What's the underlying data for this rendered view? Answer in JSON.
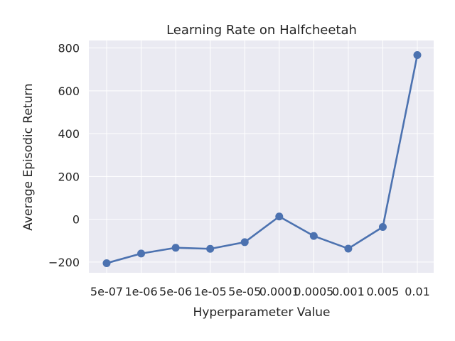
{
  "chart_data": {
    "type": "line",
    "title": "Learning Rate on Halfcheetah",
    "xlabel": "Hyperparameter Value",
    "ylabel": "Average Episodic Return",
    "categories": [
      "5e-07",
      "1e-06",
      "5e-06",
      "1e-05",
      "5e-05",
      "0.0001",
      "0.0005",
      "0.001",
      "0.005",
      "0.01"
    ],
    "series": [
      {
        "values": [
          -205,
          -160,
          -133,
          -138,
          -107,
          13,
          -78,
          -137,
          -36,
          767
        ],
        "color": "#4c72b0"
      }
    ],
    "yticks": [
      -200,
      0,
      200,
      400,
      600,
      800
    ],
    "ylim": [
      -250,
      835
    ],
    "grid": true,
    "background": "#eaeaf2"
  }
}
